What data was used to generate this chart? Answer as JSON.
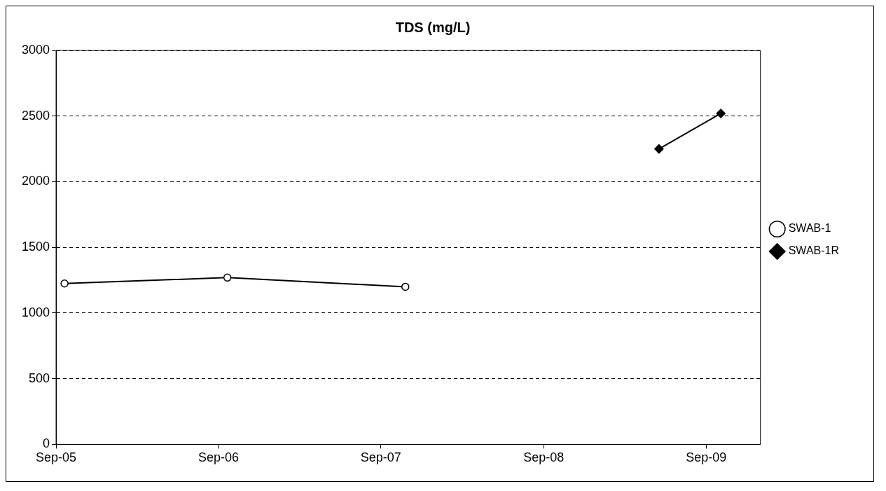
{
  "chart_data": {
    "type": "line",
    "title": "TDS (mg/L)",
    "xlim": [
      "2005-09-01",
      "2010-01-01"
    ],
    "xticks": [
      {
        "value": "2005-09-01",
        "label": "Sep-05"
      },
      {
        "value": "2006-09-01",
        "label": "Sep-06"
      },
      {
        "value": "2007-09-01",
        "label": "Sep-07"
      },
      {
        "value": "2008-09-01",
        "label": "Sep-08"
      },
      {
        "value": "2009-09-01",
        "label": "Sep-09"
      }
    ],
    "ylim": [
      0,
      3000
    ],
    "yticks": [
      0,
      500,
      1000,
      1500,
      2000,
      2500,
      3000
    ],
    "grid": "y",
    "legend": "right",
    "series": [
      {
        "name": "SWAB-1",
        "color": "#000000",
        "marker": "circle",
        "x": [
          "2005-09-20",
          "2006-09-21",
          "2007-10-26"
        ],
        "values": [
          1225,
          1270,
          1200
        ]
      },
      {
        "name": "SWAB-1R",
        "color": "#000000",
        "marker": "diamond",
        "x": [
          "2009-05-18",
          "2009-10-04"
        ],
        "values": [
          2250,
          2520
        ]
      }
    ]
  }
}
